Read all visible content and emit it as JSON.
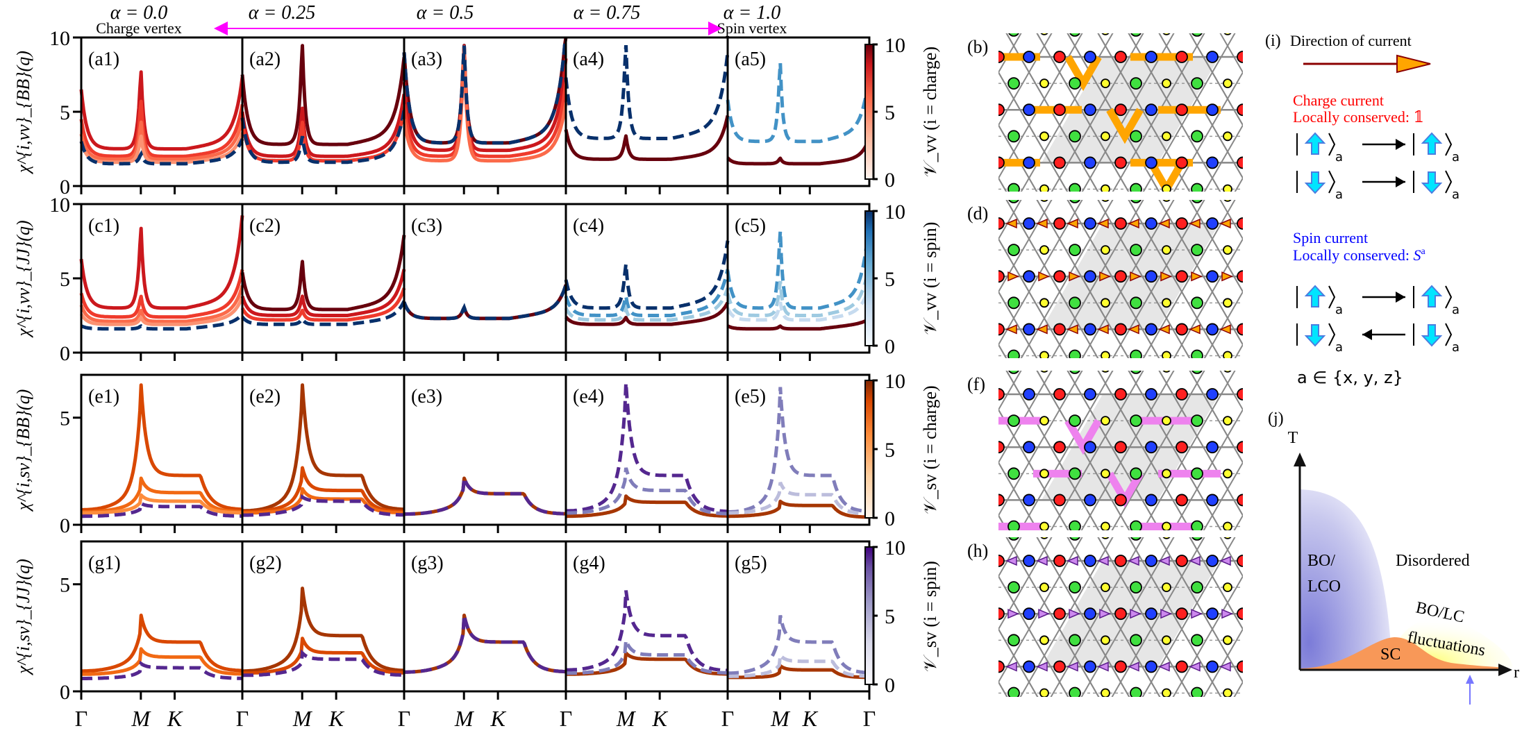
{
  "figure": {
    "column_headers": [
      {
        "alpha_label": "α = 0.0",
        "subtitle": "Charge vertex"
      },
      {
        "alpha_label": "α = 0.25",
        "subtitle": ""
      },
      {
        "alpha_label": "α = 0.5",
        "subtitle": ""
      },
      {
        "alpha_label": "α = 0.75",
        "subtitle": ""
      },
      {
        "alpha_label": "α = 1.0",
        "subtitle": "Spin vertex"
      }
    ],
    "arrow_color": "#ff00ff"
  },
  "chart_data": [
    {
      "type": "line",
      "row_id": "a",
      "ylabel": "χ^{i,vv}_{BB}(q)",
      "ylim": [
        0,
        10
      ],
      "yticks": [
        0,
        5,
        10
      ],
      "xticks": [
        "Γ",
        "M",
        "K",
        "Γ"
      ],
      "panel_labels": [
        "(a1)",
        "(a2)",
        "(a3)",
        "(a4)",
        "(a5)"
      ],
      "colorbar": {
        "ticks": [
          "0",
          "5",
          "10"
        ],
        "cmap": "Reds",
        "side_label": "𝒱_vv (i = charge)"
      },
      "series_note": "Solid = charge (Reds, by U), dashed = spin (Blues, by U)",
      "panels": [
        {
          "alpha": 0.0,
          "solid_peaks": {
            "Gamma_start": [
              6.5,
              4.5,
              3.5,
              3.0
            ],
            "M": [
              8.1,
              6.0,
              4.5,
              3.5
            ],
            "K_Gamma_end": [
              6.7,
              5.0,
              4.0,
              3.2
            ],
            "floor": [
              2.5,
              2.0,
              1.8,
              1.6
            ]
          },
          "dashed": {
            "Gamma_start": 3.0,
            "M": 2.2,
            "floor": 1.5,
            "end": 2.8
          }
        },
        {
          "alpha": 0.25,
          "solid_peaks": {
            "Gamma_start": [
              7.5,
              5.0,
              4.3
            ],
            "M": [
              10,
              5.5,
              4.5
            ],
            "end": [
              8.0,
              5.7,
              4.7
            ],
            "floor": [
              2.8,
              2.0,
              1.7
            ]
          },
          "dashed": {
            "Gamma_start": 4.6,
            "M": 3.5,
            "floor": 1.6,
            "end": 4.7
          }
        },
        {
          "alpha": 0.5,
          "solid_peaks": {
            "Gamma_start": [
              9.0,
              7.0,
              5.5,
              4.5
            ],
            "M": [
              10,
              10,
              10,
              10
            ],
            "end": [
              9.7,
              8.0,
              6.5,
              5.2
            ],
            "floor": [
              2.9,
              2.4,
              2.0,
              1.7
            ]
          },
          "dashed": {
            "Gamma_start": 9.0,
            "M": 10,
            "floor": 2.9,
            "end": 9.7
          }
        },
        {
          "alpha": 0.75,
          "solid_peaks": {
            "Gamma_start": [
              3.8
            ],
            "M": [
              3.5
            ],
            "end": [
              4.3
            ],
            "floor": [
              1.8
            ]
          },
          "dashed": {
            "Gamma_start": [
              7.3,
              5.5
            ],
            "M": [
              10,
              10
            ],
            "floor": [
              3.2,
              2.3
            ],
            "end": [
              8.2,
              6.0
            ]
          }
        },
        {
          "alpha": 1.0,
          "solid_peaks": {
            "Gamma_start": [
              1.9
            ],
            "M": [
              1.9
            ],
            "end": [
              2.9
            ],
            "floor": [
              1.5
            ]
          },
          "dashed": {
            "Gamma_start": [
              5.8,
              4.0
            ],
            "M": [
              8.7,
              7.0
            ],
            "floor": [
              3.0,
              2.3
            ],
            "end": [
              6.9,
              5.0
            ]
          }
        }
      ]
    },
    {
      "type": "line",
      "row_id": "c",
      "ylabel": "χ^{i,vv}_{JJ}(q)",
      "ylim": [
        0,
        10
      ],
      "yticks": [
        0,
        5,
        10
      ],
      "xticks": [
        "Γ",
        "M",
        "K",
        "Γ"
      ],
      "panel_labels": [
        "(c1)",
        "(c2)",
        "(c3)",
        "(c4)",
        "(c5)"
      ],
      "colorbar": {
        "ticks": [
          "0",
          "5",
          "10"
        ],
        "cmap": "Blues",
        "side_label": "𝒱_vv (i = spin)"
      },
      "panels": [
        {
          "alpha": 0.0,
          "solid": [
            {
              "G": 6.3,
              "M": 8.8,
              "floor": 3.0,
              "end": 8.5
            },
            {
              "G": 4.0,
              "M": 3.9,
              "floor": 2.4,
              "end": 5.0
            },
            {
              "G": 3.2,
              "M": 2.9,
              "floor": 2.1,
              "end": 4.0
            },
            {
              "G": 2.6,
              "M": 2.4,
              "floor": 1.9,
              "end": 3.3
            }
          ],
          "dashed": {
            "G": 1.8,
            "M": 1.8,
            "floor": 1.6,
            "end": 2.2
          }
        },
        {
          "alpha": 0.25,
          "solid": [
            {
              "G": 5.4,
              "M": 6.4,
              "floor": 2.9,
              "end": 7.2
            },
            {
              "G": 3.8,
              "M": 3.9,
              "floor": 2.5,
              "end": 5.0
            },
            {
              "G": 3.0,
              "M": 2.9,
              "floor": 2.2,
              "end": 3.8
            }
          ],
          "dashed": {
            "G": 2.4,
            "M": 2.3,
            "floor": 1.9,
            "end": 3.0
          }
        },
        {
          "alpha": 0.5,
          "solid": [
            {
              "G": 3.4,
              "M": 3.1,
              "floor": 2.3,
              "end": 4.0
            }
          ],
          "dashed": {
            "G": 3.4,
            "M": 3.1,
            "floor": 2.3,
            "end": 4.0
          }
        },
        {
          "alpha": 0.75,
          "solid": [
            {
              "G": 2.4,
              "M": 2.4,
              "floor": 1.9,
              "end": 2.9
            }
          ],
          "dashed": [
            {
              "G": 4.9,
              "M": 6.2,
              "floor": 3.0,
              "end": 6.8
            },
            {
              "G": 3.8,
              "M": 3.9,
              "floor": 2.5,
              "end": 5.0
            },
            {
              "G": 3.0,
              "M": 3.0,
              "floor": 2.2,
              "end": 3.8
            }
          ]
        },
        {
          "alpha": 1.0,
          "solid": [
            {
              "G": 1.8,
              "M": 1.8,
              "floor": 1.6,
              "end": 1.9
            }
          ],
          "dashed": [
            {
              "G": 5.5,
              "M": 8.6,
              "floor": 3.0,
              "end": 8.2
            },
            {
              "G": 4.0,
              "M": 5.0,
              "floor": 2.5,
              "end": 5.5
            },
            {
              "G": 3.0,
              "M": 3.5,
              "floor": 2.2,
              "end": 4.0
            }
          ]
        }
      ]
    },
    {
      "type": "line",
      "row_id": "e",
      "ylabel": "χ^{i,sv}_{BB}(q)",
      "ylim": [
        0,
        7
      ],
      "yticks": [
        0,
        5
      ],
      "xticks": [
        "Γ",
        "M",
        "K",
        "Γ"
      ],
      "panel_labels": [
        "(e1)",
        "(e2)",
        "(e3)",
        "(e4)",
        "(e5)"
      ],
      "colorbar": {
        "ticks": [
          "0",
          "5",
          "10"
        ],
        "cmap": "Oranges",
        "side_label": "𝒱_sv (i = charge)"
      },
      "panels": [
        {
          "alpha": 0.0,
          "solid": [
            {
              "G": 0.7,
              "M": 6.7,
              "plateau": 2.3,
              "end": 0.7
            },
            {
              "G": 0.6,
              "M": 2.2,
              "plateau": 1.5,
              "end": 0.6
            },
            {
              "G": 0.55,
              "M": 1.4,
              "plateau": 1.1,
              "end": 0.55
            }
          ],
          "dashed": {
            "G": 0.4,
            "M": 1.0,
            "plateau": 0.85,
            "end": 0.4
          }
        },
        {
          "alpha": 0.25,
          "solid": [
            {
              "G": 0.65,
              "M": 6.7,
              "plateau": 2.3,
              "end": 0.7
            },
            {
              "G": 0.6,
              "M": 2.7,
              "plateau": 1.6,
              "end": 0.6
            },
            {
              "G": 0.55,
              "M": 1.7,
              "plateau": 1.2,
              "end": 0.55
            }
          ],
          "dashed": {
            "G": 0.45,
            "M": 1.3,
            "plateau": 1.1,
            "end": 0.45
          }
        },
        {
          "alpha": 0.5,
          "solid": [
            {
              "G": 0.5,
              "M": 2.2,
              "plateau": 1.45,
              "end": 0.5
            }
          ],
          "dashed": {
            "G": 0.5,
            "M": 2.2,
            "plateau": 1.45,
            "end": 0.5
          }
        },
        {
          "alpha": 0.75,
          "solid": [
            {
              "G": 0.4,
              "M": 1.35,
              "plateau": 1.05,
              "end": 0.4
            }
          ],
          "dashed": [
            {
              "G": 0.65,
              "M": 6.8,
              "plateau": 2.3,
              "end": 0.6
            },
            {
              "G": 0.55,
              "M": 2.7,
              "plateau": 1.6,
              "end": 0.5
            }
          ]
        },
        {
          "alpha": 1.0,
          "solid": [
            {
              "G": 0.4,
              "M": 1.1,
              "plateau": 0.9,
              "end": 0.35
            }
          ],
          "dashed": [
            {
              "G": 0.6,
              "M": 6.6,
              "plateau": 2.3,
              "end": 0.6
            },
            {
              "G": 0.55,
              "M": 2.0,
              "plateau": 1.4,
              "end": 0.5
            }
          ]
        }
      ]
    },
    {
      "type": "line",
      "row_id": "g",
      "ylabel": "χ^{i,sv}_{JJ}(q)",
      "ylim": [
        0,
        7
      ],
      "yticks": [
        0,
        5
      ],
      "xticks": [
        "Γ",
        "M",
        "K",
        "Γ"
      ],
      "panel_labels": [
        "(g1)",
        "(g2)",
        "(g3)",
        "(g4)",
        "(g5)"
      ],
      "colorbar": {
        "ticks": [
          "0",
          "5",
          "10"
        ],
        "cmap": "Purples",
        "side_label": "𝒱_sv (i = spin)"
      },
      "panels": [
        {
          "alpha": 0.0,
          "solid": [
            {
              "G": 0.95,
              "M": 3.6,
              "plateau": 2.3,
              "end": 0.95
            },
            {
              "G": 0.8,
              "M": 2.0,
              "plateau": 1.6,
              "end": 0.8
            }
          ],
          "dashed": {
            "G": 0.6,
            "M": 1.3,
            "plateau": 1.1,
            "end": 0.6
          }
        },
        {
          "alpha": 0.25,
          "solid": [
            {
              "G": 0.95,
              "M": 4.9,
              "plateau": 2.6,
              "end": 0.95
            },
            {
              "G": 0.85,
              "M": 2.5,
              "plateau": 1.8,
              "end": 0.85
            }
          ],
          "dashed": {
            "G": 0.75,
            "M": 1.8,
            "plateau": 1.5,
            "end": 0.75
          }
        },
        {
          "alpha": 0.5,
          "solid": [
            {
              "G": 0.9,
              "M": 3.6,
              "plateau": 2.3,
              "end": 0.9
            }
          ],
          "dashed": {
            "G": 0.9,
            "M": 3.6,
            "plateau": 2.3,
            "end": 0.9
          }
        },
        {
          "alpha": 0.75,
          "solid": [
            {
              "G": 0.8,
              "M": 1.8,
              "plateau": 1.5,
              "end": 0.8
            }
          ],
          "dashed": [
            {
              "G": 1.0,
              "M": 4.8,
              "plateau": 2.6,
              "end": 0.95
            },
            {
              "G": 0.85,
              "M": 2.4,
              "plateau": 1.7,
              "end": 0.85
            }
          ]
        },
        {
          "alpha": 1.0,
          "solid": [
            {
              "G": 0.65,
              "M": 1.2,
              "plateau": 1.0,
              "end": 0.65
            }
          ],
          "dashed": [
            {
              "G": 0.85,
              "M": 3.6,
              "plateau": 2.3,
              "end": 0.85
            },
            {
              "G": 0.7,
              "M": 1.7,
              "plateau": 1.4,
              "end": 0.7
            }
          ]
        }
      ]
    }
  ],
  "lattices": [
    {
      "label": "(b)",
      "side_label": "𝒱_vv (i = charge)",
      "bond_color": "#ffa500",
      "style": "thick-bonds"
    },
    {
      "label": "(d)",
      "side_label": "𝒱_vv (i = spin)",
      "arrow_color": "#ffa500",
      "arrow_edge": "#8b0000",
      "style": "arrows"
    },
    {
      "label": "(f)",
      "side_label": "𝒱_sv (i = charge)",
      "bond_color": "#ee82ee",
      "style": "thick-bonds"
    },
    {
      "label": "(h)",
      "side_label": "𝒱_sv (i = spin)",
      "arrow_color": "#cc88ee",
      "arrow_edge": "#5a1a8a",
      "style": "arrows"
    }
  ],
  "legend_i": {
    "label": "(i)",
    "title": "Direction of current",
    "charge_title": "Charge current",
    "charge_conserved": "Locally conserved: 𝟙",
    "spin_title": "Spin current",
    "spin_conserved_prefix": "Locally conserved: ",
    "spin_conserved_symbol": "S",
    "spin_conserved_sup": "a",
    "ket_sub": "a",
    "set_text": "a ∈ {x, y, z}",
    "charge_color": "#ff0000",
    "spin_color": "#0000ff"
  },
  "phase_diagram": {
    "label": "(j)",
    "y_axis": "T",
    "x_axis": "r",
    "regions": [
      "BO/",
      "LCO",
      "Disordered",
      "BO/LC",
      "fluctuations",
      "SC"
    ]
  }
}
